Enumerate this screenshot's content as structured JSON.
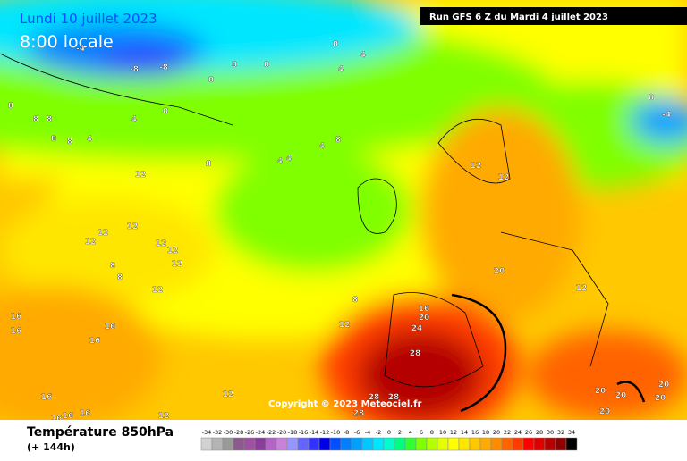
{
  "header": {
    "date": "Lundi 10 juillet 2023",
    "time": "8:00 locale",
    "run": "Run GFS 6 Z du Mardi 4 juillet 2023"
  },
  "map": {
    "copyright": "Copyright © 2023 Meteociel.fr",
    "contour_labels": [
      -4,
      -8,
      -8,
      0,
      0,
      0,
      0,
      0,
      0,
      -4,
      4,
      4,
      4,
      4,
      4,
      4,
      4,
      8,
      8,
      8,
      8,
      8,
      8,
      8,
      8,
      8,
      8,
      12,
      12,
      12,
      12,
      12,
      12,
      12,
      12,
      12,
      12,
      12,
      12,
      12,
      12,
      16,
      16,
      16,
      16,
      16,
      16,
      16,
      16,
      16,
      20,
      20,
      20,
      20,
      20,
      20,
      20,
      24,
      28,
      28,
      28,
      28
    ]
  },
  "legend": {
    "title": "Température 850hPa",
    "subtitle": "(+ 144h)",
    "levels": [
      -34,
      -32,
      -30,
      -28,
      -26,
      -24,
      -22,
      -20,
      -18,
      -16,
      -14,
      -12,
      -10,
      -8,
      -6,
      -4,
      -2,
      0,
      2,
      4,
      6,
      8,
      10,
      12,
      14,
      16,
      18,
      20,
      22,
      24,
      26,
      28,
      30,
      32,
      34
    ],
    "colors": [
      "#d2d2d2",
      "#b4b4b4",
      "#9a9a9a",
      "#8c5a8c",
      "#a050a0",
      "#8c3c9c",
      "#b464c8",
      "#c882dc",
      "#9696ff",
      "#6464ff",
      "#3232ff",
      "#0000e6",
      "#0050ff",
      "#0080ff",
      "#00a0ff",
      "#00c8ff",
      "#00e6ff",
      "#00ffc8",
      "#00ff80",
      "#32ff32",
      "#80ff00",
      "#b4ff00",
      "#e6ff00",
      "#ffff00",
      "#ffe600",
      "#ffc800",
      "#ffaa00",
      "#ff8c00",
      "#ff6400",
      "#ff3c00",
      "#ff0000",
      "#dc0000",
      "#b40000",
      "#8c0000",
      "#000000"
    ]
  }
}
